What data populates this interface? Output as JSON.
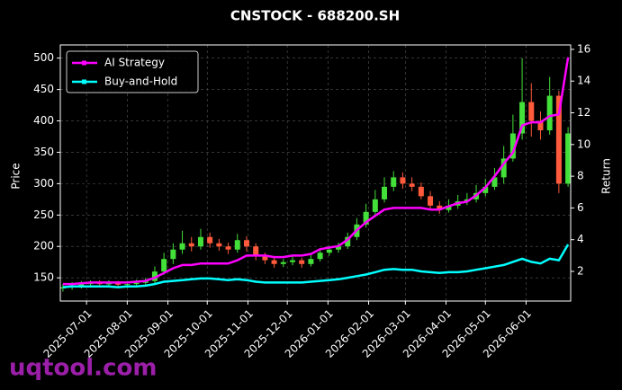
{
  "chart_data": {
    "type": "candlestick",
    "title": "CNSTOCK - 688200.SH",
    "ylabel": "Price",
    "y2label": "Return",
    "x": [
      "2025-06-13",
      "2025-06-20",
      "2025-06-27",
      "2025-07-04",
      "2025-07-11",
      "2025-07-18",
      "2025-07-25",
      "2025-08-01",
      "2025-08-08",
      "2025-08-15",
      "2025-08-22",
      "2025-08-29",
      "2025-09-05",
      "2025-09-12",
      "2025-09-19",
      "2025-09-26",
      "2025-10-03",
      "2025-10-10",
      "2025-10-17",
      "2025-10-24",
      "2025-10-31",
      "2025-11-07",
      "2025-11-14",
      "2025-11-21",
      "2025-11-28",
      "2025-12-05",
      "2025-12-12",
      "2025-12-19",
      "2025-12-26",
      "2026-01-02",
      "2026-01-09",
      "2026-01-16",
      "2026-01-23",
      "2026-01-30",
      "2026-02-06",
      "2026-02-13",
      "2026-02-20",
      "2026-02-27",
      "2026-03-06",
      "2026-03-13",
      "2026-03-20",
      "2026-03-27",
      "2026-04-03",
      "2026-04-10",
      "2026-04-17",
      "2026-04-24",
      "2026-05-01",
      "2026-05-08",
      "2026-05-15",
      "2026-05-22",
      "2026-05-29",
      "2026-06-05",
      "2026-06-12",
      "2026-06-19",
      "2026-06-26",
      "2026-07-03"
    ],
    "open": [
      133,
      135,
      138,
      140,
      142,
      140,
      141,
      139,
      140,
      142,
      145,
      160,
      180,
      195,
      205,
      200,
      215,
      205,
      200,
      195,
      210,
      200,
      185,
      178,
      172,
      175,
      178,
      172,
      180,
      190,
      195,
      200,
      215,
      235,
      255,
      275,
      295,
      310,
      300,
      295,
      280,
      265,
      258,
      265,
      272,
      275,
      285,
      295,
      310,
      340,
      380,
      430,
      400,
      385,
      440,
      300
    ],
    "high": [
      140,
      143,
      145,
      146,
      146,
      146,
      145,
      145,
      147,
      150,
      168,
      190,
      205,
      225,
      215,
      228,
      222,
      212,
      206,
      220,
      216,
      205,
      190,
      183,
      180,
      184,
      182,
      186,
      197,
      201,
      206,
      222,
      245,
      268,
      290,
      310,
      320,
      318,
      310,
      302,
      288,
      272,
      275,
      282,
      285,
      298,
      308,
      325,
      360,
      410,
      500,
      460,
      415,
      470,
      448,
      390
    ],
    "low": [
      128,
      131,
      133,
      135,
      135,
      135,
      134,
      134,
      135,
      137,
      140,
      155,
      172,
      188,
      192,
      195,
      198,
      193,
      188,
      190,
      192,
      178,
      172,
      166,
      167,
      170,
      166,
      168,
      176,
      185,
      190,
      196,
      210,
      230,
      250,
      270,
      288,
      292,
      288,
      275,
      260,
      252,
      254,
      260,
      266,
      270,
      280,
      290,
      300,
      335,
      370,
      375,
      370,
      378,
      285,
      295
    ],
    "close": [
      135,
      138,
      140,
      142,
      140,
      141,
      139,
      140,
      142,
      145,
      160,
      180,
      195,
      205,
      200,
      215,
      205,
      200,
      195,
      210,
      200,
      185,
      178,
      172,
      175,
      178,
      172,
      180,
      190,
      195,
      200,
      215,
      235,
      255,
      275,
      295,
      310,
      300,
      295,
      280,
      265,
      258,
      265,
      272,
      275,
      285,
      295,
      310,
      340,
      380,
      430,
      400,
      385,
      440,
      300,
      380
    ],
    "up_color": "#44e03a",
    "down_color": "#ff5a3c",
    "series": [
      {
        "name": "AI Strategy",
        "color": "#ff00ff",
        "axis": "y2",
        "values": [
          1.2,
          1.2,
          1.25,
          1.3,
          1.3,
          1.3,
          1.3,
          1.3,
          1.35,
          1.4,
          1.6,
          1.9,
          2.2,
          2.4,
          2.4,
          2.5,
          2.5,
          2.5,
          2.5,
          2.7,
          3.0,
          3.0,
          3.0,
          2.9,
          2.9,
          3.0,
          3.0,
          3.1,
          3.4,
          3.5,
          3.6,
          4.0,
          4.6,
          5.1,
          5.5,
          5.9,
          6.0,
          6.0,
          6.0,
          6.0,
          5.9,
          5.9,
          6.1,
          6.3,
          6.4,
          6.8,
          7.3,
          8.0,
          8.8,
          9.5,
          11.2,
          11.4,
          11.4,
          11.8,
          11.9,
          15.5
        ]
      },
      {
        "name": "Buy-and-Hold",
        "color": "#00ffff",
        "axis": "y2",
        "values": [
          1.0,
          1.05,
          1.05,
          1.05,
          1.05,
          1.05,
          1.0,
          1.05,
          1.05,
          1.1,
          1.2,
          1.35,
          1.4,
          1.45,
          1.5,
          1.55,
          1.55,
          1.5,
          1.45,
          1.5,
          1.45,
          1.35,
          1.3,
          1.3,
          1.3,
          1.3,
          1.3,
          1.35,
          1.4,
          1.45,
          1.5,
          1.6,
          1.7,
          1.8,
          1.95,
          2.1,
          2.15,
          2.1,
          2.1,
          2.0,
          1.95,
          1.9,
          1.95,
          1.95,
          2.0,
          2.1,
          2.2,
          2.3,
          2.4,
          2.6,
          2.8,
          2.6,
          2.5,
          2.8,
          2.7,
          3.7
        ]
      }
    ],
    "xlim": [
      "2025-06-11",
      "2026-07-05"
    ],
    "xticks": [
      "2025-07-01",
      "2025-08-01",
      "2025-09-01",
      "2025-10-01",
      "2025-11-01",
      "2025-12-01",
      "2026-01-01",
      "2026-02-01",
      "2026-03-01",
      "2026-04-01",
      "2026-05-01",
      "2026-06-01"
    ],
    "ylim": [
      113,
      521
    ],
    "yticks": [
      150,
      200,
      250,
      300,
      350,
      400,
      450,
      500
    ],
    "y2lim": [
      0.13,
      16.28
    ],
    "y2ticks": [
      2,
      4,
      6,
      8,
      10,
      12,
      14,
      16
    ],
    "grid": true,
    "legend": "upper left"
  },
  "watermark": "uqtool.com"
}
